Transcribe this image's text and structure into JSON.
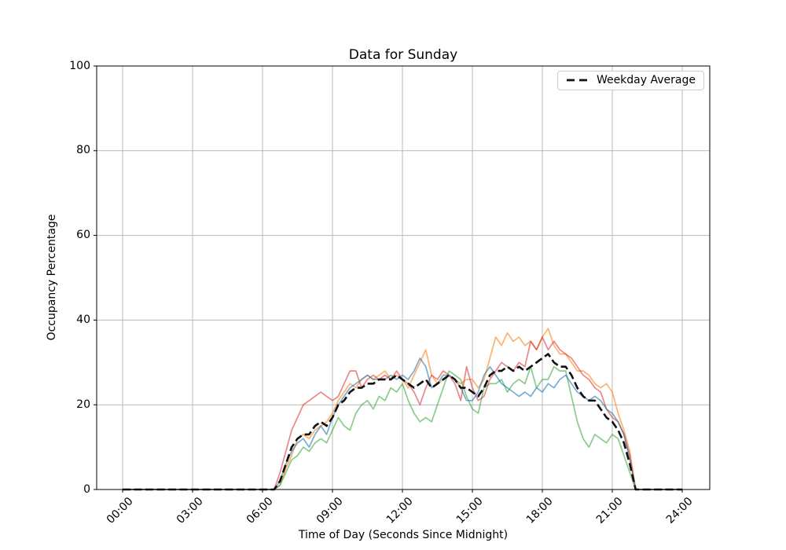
{
  "chart_data": {
    "type": "line",
    "title": "Data for Sunday",
    "xlabel": "Time of Day (Seconds Since Midnight)",
    "ylabel": "Occupancy Percentage",
    "grid": true,
    "legend": {
      "label": "Weekday Average",
      "position": "upper-right"
    },
    "x_axis": {
      "tick_labels": [
        "00:00",
        "03:00",
        "06:00",
        "09:00",
        "12:00",
        "15:00",
        "18:00",
        "21:00",
        "24:00"
      ],
      "tick_hours": [
        0,
        3,
        6,
        9,
        12,
        15,
        18,
        21,
        24
      ],
      "range_hours": [
        0,
        24
      ]
    },
    "y_axis": {
      "ticks": [
        0,
        20,
        40,
        60,
        80,
        100
      ],
      "range": [
        0,
        100
      ]
    },
    "x_interval_hours": 0.25,
    "style": {
      "grid_color": "#b9b9b9",
      "axis_color": "#000000",
      "background": "#ffffff",
      "average_color": "#111111"
    },
    "series": [
      {
        "id": "orange",
        "name": "sunday-series-orange",
        "color": "rgba(255,127,14,0.6)",
        "line_width": 1.7,
        "dashed": false,
        "values": [
          0,
          0,
          0,
          0,
          0,
          0,
          0,
          0,
          0,
          0,
          0,
          0,
          0,
          0,
          0,
          0,
          0,
          0,
          0,
          0,
          0,
          0,
          0,
          0,
          0,
          0,
          0,
          1,
          5,
          8,
          12,
          13,
          12,
          14,
          15,
          16,
          18,
          21,
          23,
          25,
          24,
          26,
          27,
          26,
          27,
          28,
          26,
          27,
          26,
          24,
          27,
          30,
          33,
          27,
          25,
          26,
          27,
          26,
          25,
          26,
          26,
          24,
          26,
          31,
          36,
          34,
          37,
          35,
          36,
          34,
          35,
          33,
          36,
          38,
          34,
          32,
          32,
          30,
          28,
          28,
          27,
          25,
          24,
          25,
          23,
          18,
          14,
          9,
          0,
          0,
          0,
          0,
          0,
          0,
          0,
          0,
          0
        ]
      },
      {
        "id": "green",
        "name": "sunday-series-green",
        "color": "rgba(44,160,44,0.55)",
        "line_width": 1.7,
        "dashed": false,
        "values": [
          0,
          0,
          0,
          0,
          0,
          0,
          0,
          0,
          0,
          0,
          0,
          0,
          0,
          0,
          0,
          0,
          0,
          0,
          0,
          0,
          0,
          0,
          0,
          0,
          0,
          0,
          0,
          1,
          4,
          7,
          8,
          10,
          9,
          11,
          12,
          11,
          14,
          17,
          15,
          14,
          18,
          20,
          21,
          19,
          22,
          21,
          24,
          23,
          25,
          21,
          18,
          16,
          17,
          16,
          20,
          24,
          28,
          27,
          26,
          22,
          19,
          18,
          24,
          25,
          25,
          26,
          23,
          25,
          26,
          25,
          29,
          24,
          26,
          26,
          29,
          28,
          28,
          22,
          16,
          12,
          10,
          13,
          12,
          11,
          13,
          12,
          8,
          4,
          0,
          0,
          0,
          0,
          0,
          0,
          0,
          0,
          0
        ]
      },
      {
        "id": "red",
        "name": "sunday-series-red",
        "color": "rgba(214,39,40,0.55)",
        "line_width": 1.7,
        "dashed": false,
        "values": [
          0,
          0,
          0,
          0,
          0,
          0,
          0,
          0,
          0,
          0,
          0,
          0,
          0,
          0,
          0,
          0,
          0,
          0,
          0,
          0,
          0,
          0,
          0,
          0,
          0,
          0,
          0,
          4,
          9,
          14,
          17,
          20,
          21,
          22,
          23,
          22,
          21,
          22,
          25,
          28,
          28,
          24,
          26,
          27,
          26,
          27,
          26,
          28,
          26,
          25,
          23,
          20,
          24,
          27,
          26,
          28,
          27,
          25,
          21,
          29,
          24,
          21,
          22,
          26,
          28,
          30,
          29,
          28,
          30,
          29,
          35,
          33,
          36,
          33,
          35,
          33,
          32,
          31,
          29,
          27,
          26,
          24,
          23,
          19,
          17,
          16,
          13,
          8,
          0,
          0,
          0,
          0,
          0,
          0,
          0,
          0,
          0
        ]
      },
      {
        "id": "blue",
        "name": "sunday-series-blue",
        "color": "rgba(31,119,180,0.6)",
        "line_width": 1.7,
        "dashed": false,
        "values": [
          0,
          0,
          0,
          0,
          0,
          0,
          0,
          0,
          0,
          0,
          0,
          0,
          0,
          0,
          0,
          0,
          0,
          0,
          0,
          0,
          0,
          0,
          0,
          0,
          0,
          0,
          0,
          2,
          6,
          9,
          11,
          12,
          10,
          13,
          15,
          13,
          17,
          20,
          22,
          24,
          25,
          26,
          27,
          26,
          26,
          26,
          27,
          26,
          27,
          26,
          28,
          31,
          29,
          24,
          25,
          27,
          27,
          26,
          24,
          21,
          21,
          23,
          27,
          29,
          27,
          25,
          24,
          23,
          22,
          23,
          22,
          24,
          23,
          25,
          24,
          26,
          27,
          25,
          23,
          22,
          21,
          22,
          21,
          19,
          18,
          16,
          13,
          7,
          0,
          0,
          0,
          0,
          0,
          0,
          0,
          0,
          0
        ]
      },
      {
        "id": "weekday-average",
        "name": "weekday-average",
        "color": "#111111",
        "line_width": 2.6,
        "dashed": true,
        "values": [
          0,
          0,
          0,
          0,
          0,
          0,
          0,
          0,
          0,
          0,
          0,
          0,
          0,
          0,
          0,
          0,
          0,
          0,
          0,
          0,
          0,
          0,
          0,
          0,
          0,
          0,
          0,
          2,
          6,
          10,
          12,
          13,
          13,
          15,
          16,
          15,
          17,
          20,
          21,
          23,
          24,
          24,
          25,
          25,
          26,
          26,
          26,
          27,
          26,
          25,
          24,
          25,
          26,
          24,
          25,
          26,
          27,
          26,
          24,
          24,
          23,
          22,
          24,
          27,
          28,
          28,
          29,
          28,
          29,
          28,
          29,
          30,
          31,
          32,
          30,
          29,
          29,
          27,
          24,
          22,
          21,
          21,
          19,
          17,
          16,
          14,
          11,
          6,
          0,
          0,
          0,
          0,
          0,
          0,
          0,
          0,
          0
        ]
      }
    ]
  }
}
